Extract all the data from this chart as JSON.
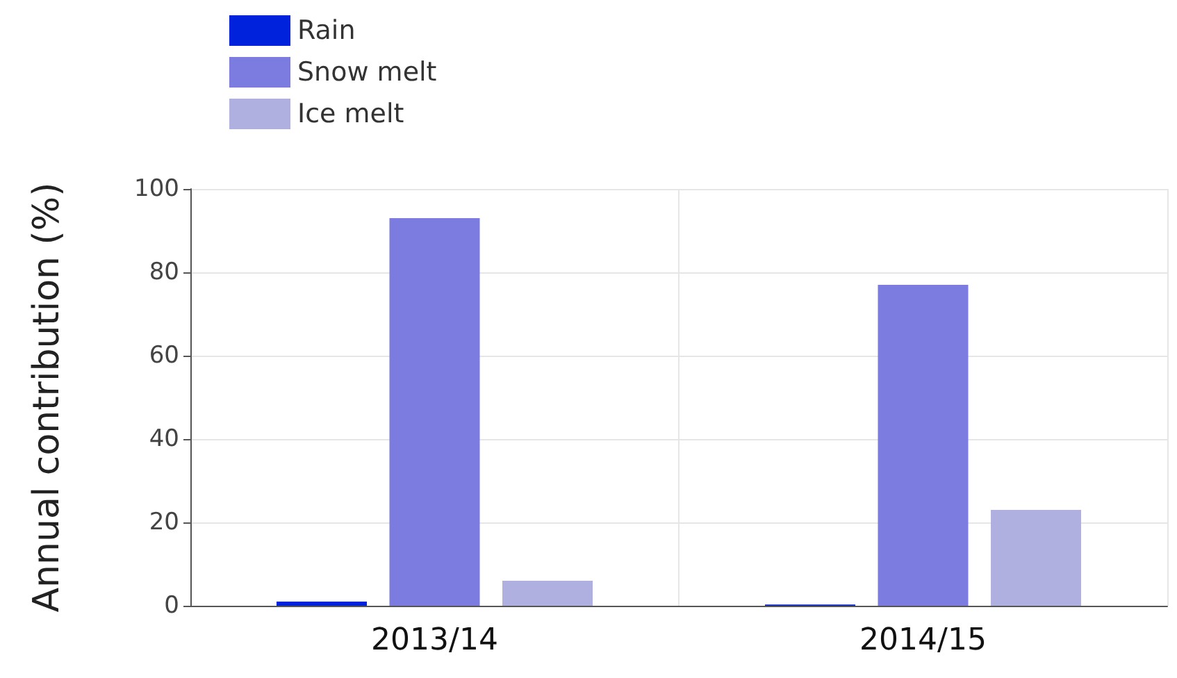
{
  "chart_data": {
    "type": "bar",
    "ylabel": "Annual contribution (%)",
    "categories": [
      "2013/14",
      "2014/15"
    ],
    "series": [
      {
        "name": "Rain",
        "color": "#0022dd",
        "values": [
          1,
          0.3
        ]
      },
      {
        "name": "Snow melt",
        "color": "#7b7be0",
        "values": [
          93,
          77
        ]
      },
      {
        "name": "Ice melt",
        "color": "#b0b0e0",
        "values": [
          6,
          23
        ]
      }
    ],
    "ylim": [
      0,
      100
    ],
    "yticks": [
      0,
      20,
      40,
      60,
      80,
      100
    ],
    "grid": true,
    "legend": "top left"
  }
}
